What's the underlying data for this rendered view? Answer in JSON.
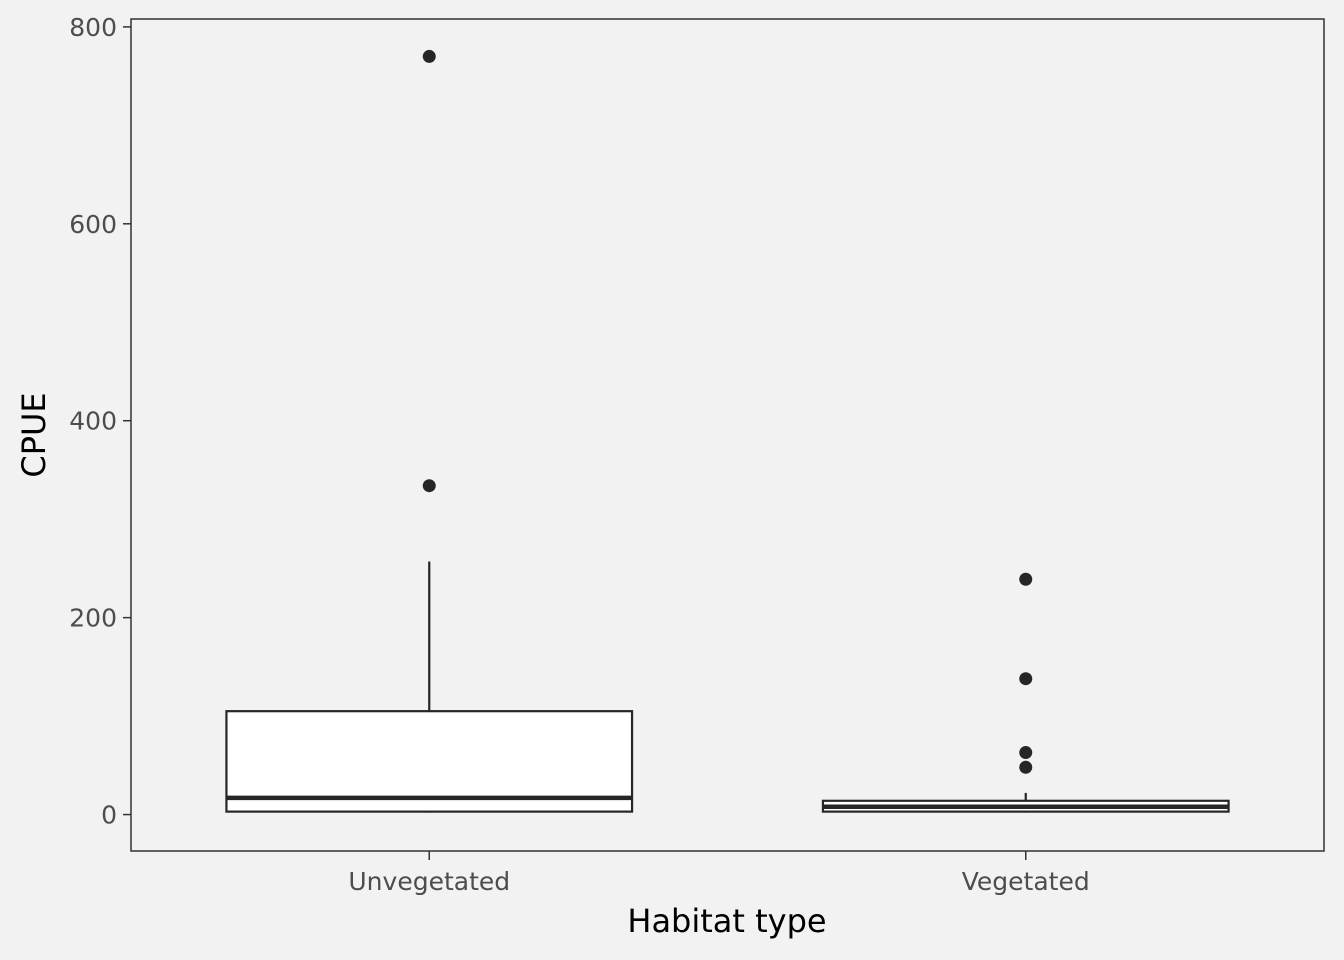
{
  "chart_data": {
    "type": "boxplot",
    "title": "",
    "xlabel": "Habitat type",
    "ylabel": "CPUE",
    "categories": [
      "Unvegetated",
      "Vegetated"
    ],
    "ylim": [
      -37,
      808
    ],
    "yticks": [
      0,
      200,
      400,
      600,
      800
    ],
    "ytick_labels": [
      "0",
      "200",
      "400",
      "600",
      "800"
    ],
    "grid": false,
    "legend": "none",
    "boxes": [
      {
        "category": "Unvegetated",
        "whisker_low": 2,
        "q1": 3,
        "median": 17,
        "q3": 105,
        "whisker_high": 257,
        "outliers": [
          334,
          770
        ]
      },
      {
        "category": "Vegetated",
        "whisker_low": 2,
        "q1": 3,
        "median": 8,
        "q3": 14,
        "whisker_high": 22,
        "outliers": [
          48,
          63,
          138,
          239
        ]
      }
    ],
    "colors": {
      "background": "#f2f2f2",
      "box_fill": "#ffffff",
      "line": "#262626",
      "outlier": "#262626",
      "panel_border": "#333333"
    }
  }
}
